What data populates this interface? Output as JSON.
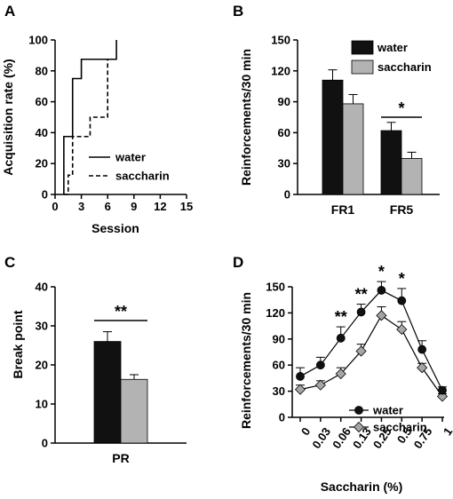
{
  "chart_data": [
    {
      "panel": "A",
      "type": "line",
      "step": true,
      "xlabel": "Session",
      "ylabel": "Acquisition rate (%)",
      "xlim": [
        0,
        15
      ],
      "ylim": [
        0,
        100
      ],
      "xticks": [
        "0",
        "3",
        "6",
        "9",
        "12",
        "15"
      ],
      "yticks": [
        "0",
        "20",
        "40",
        "60",
        "80",
        "100"
      ],
      "legend": "bottom-right",
      "series": [
        {
          "name": "water",
          "dash": "solid",
          "x": [
            1,
            1,
            2,
            2,
            3,
            3,
            6,
            6,
            7,
            7
          ],
          "y": [
            0,
            37.5,
            37.5,
            75,
            75,
            87.5,
            87.5,
            87.5,
            87.5,
            100
          ]
        },
        {
          "name": "saccharin",
          "dash": "dashed",
          "x": [
            1,
            1.5,
            1.5,
            2,
            2,
            4,
            4,
            5,
            5,
            6,
            6,
            6.5
          ],
          "y": [
            0,
            0,
            12.5,
            12.5,
            37.5,
            37.5,
            50,
            50,
            50,
            50,
            87.5,
            87.5
          ]
        }
      ]
    },
    {
      "panel": "B",
      "type": "bar",
      "ylabel": "Reinforcements/30  min",
      "xlabel": "",
      "ylim": [
        0,
        150
      ],
      "yticks": [
        "0",
        "30",
        "60",
        "90",
        "120",
        "150"
      ],
      "categories": [
        "FR1",
        "FR5"
      ],
      "legend": "top-right",
      "series": [
        {
          "name": "water",
          "color": "#111111",
          "values": [
            111,
            62
          ],
          "errors": [
            10,
            8
          ]
        },
        {
          "name": "saccharin",
          "color": "#b3b3b3",
          "values": [
            88,
            35
          ],
          "errors": [
            9,
            6
          ]
        }
      ],
      "annotations": [
        {
          "category": "FR5",
          "text": "*"
        }
      ]
    },
    {
      "panel": "C",
      "type": "bar",
      "ylabel": "Break point",
      "xlabel": "",
      "ylim": [
        0,
        40
      ],
      "yticks": [
        "0",
        "10",
        "20",
        "30",
        "40"
      ],
      "categories": [
        "PR"
      ],
      "series": [
        {
          "name": "water",
          "color": "#111111",
          "values": [
            26
          ],
          "errors": [
            2.5
          ]
        },
        {
          "name": "saccharin",
          "color": "#b3b3b3",
          "values": [
            16.3
          ],
          "errors": [
            1.2
          ]
        }
      ],
      "annotations": [
        {
          "category": "PR",
          "text": "**"
        }
      ]
    },
    {
      "panel": "D",
      "type": "line",
      "xlabel": "Saccharin (%)",
      "ylabel": "Reinforcements/30  min",
      "ylim": [
        0,
        150
      ],
      "yticks": [
        "0",
        "30",
        "60",
        "90",
        "120",
        "150"
      ],
      "categories": [
        "0",
        "0.03",
        "0.06",
        "0.13",
        "0.25",
        "0.5",
        "0.75",
        "1"
      ],
      "legend": "bottom-right",
      "series": [
        {
          "name": "water",
          "marker": "circle",
          "color": "#111111",
          "values": [
            47,
            60,
            91,
            121,
            146,
            134,
            78,
            31
          ],
          "errors": [
            10,
            9,
            13,
            9,
            10,
            14,
            10,
            4
          ]
        },
        {
          "name": "saccharin",
          "marker": "diamond",
          "color": "#a6a6a6",
          "values": [
            32,
            37,
            50,
            76,
            117,
            101,
            57,
            24
          ],
          "errors": [
            5,
            5,
            7,
            8,
            10,
            9,
            5,
            3
          ]
        }
      ],
      "annotations": [
        {
          "category": "0.06",
          "text": "**"
        },
        {
          "category": "0.13",
          "text": "**"
        },
        {
          "category": "0.25",
          "text": "*"
        },
        {
          "category": "0.5",
          "text": "*"
        }
      ]
    }
  ]
}
